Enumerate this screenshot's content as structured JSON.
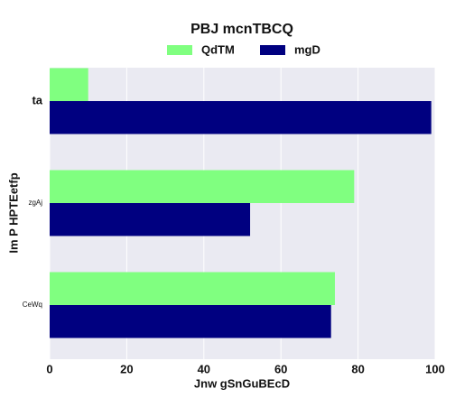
{
  "chart_data": {
    "type": "barh",
    "title": "PBJ mcnTBCQ",
    "categories": [
      "ta",
      "zgAj",
      "CeWq"
    ],
    "series": [
      {
        "name": "QdTM",
        "color": "#80ff80",
        "values": [
          10,
          79,
          74
        ]
      },
      {
        "name": "mgD",
        "color": "#000080",
        "values": [
          99,
          52,
          73
        ]
      }
    ],
    "xlabel": "Jnw gSnGuBEcD",
    "ylabel": "Im P HPTEetfp",
    "xlim": [
      0,
      100
    ],
    "xticks": [
      0,
      20,
      40,
      60,
      80,
      100
    ],
    "grid": true,
    "legend": "top"
  }
}
